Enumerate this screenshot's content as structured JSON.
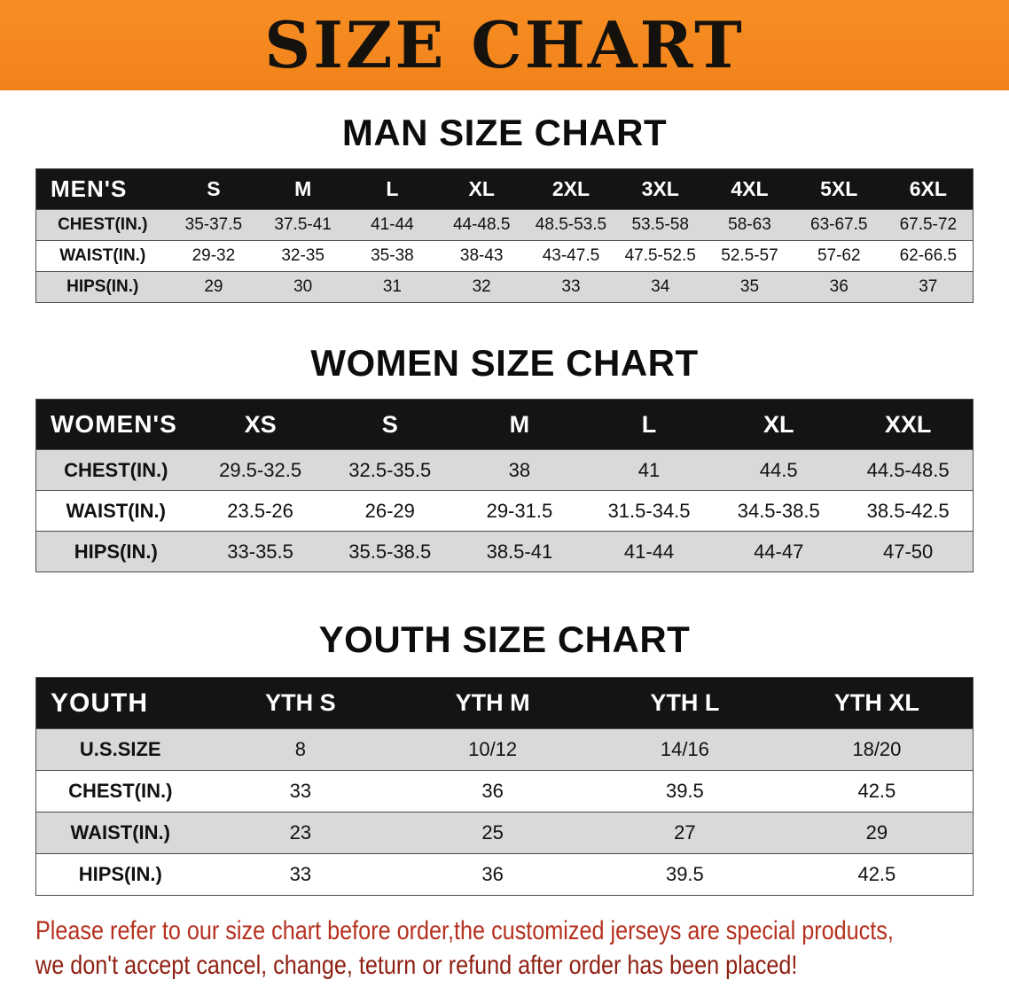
{
  "banner": {
    "title": "SIZE CHART"
  },
  "colors": {
    "banner_bg": "#F1821A",
    "table_header_bg": "#141414",
    "row_stripe": "#D9D9D9",
    "disclaimer_line1": "#B5301E",
    "disclaimer_line2": "#8F2012"
  },
  "sections": [
    {
      "id": "men",
      "title": "MAN SIZE CHART",
      "table": {
        "header": [
          "MEN'S",
          "S",
          "M",
          "L",
          "XL",
          "2XL",
          "3XL",
          "4XL",
          "5XL",
          "6XL"
        ],
        "rows": [
          [
            "CHEST(IN.)",
            "35-37.5",
            "37.5-41",
            "41-44",
            "44-48.5",
            "48.5-53.5",
            "53.5-58",
            "58-63",
            "63-67.5",
            "67.5-72"
          ],
          [
            "WAIST(IN.)",
            "29-32",
            "32-35",
            "35-38",
            "38-43",
            "43-47.5",
            "47.5-52.5",
            "52.5-57",
            "57-62",
            "62-66.5"
          ],
          [
            "HIPS(IN.)",
            "29",
            "30",
            "31",
            "32",
            "33",
            "34",
            "35",
            "36",
            "37"
          ]
        ]
      }
    },
    {
      "id": "women",
      "title": "WOMEN SIZE CHART",
      "table": {
        "header": [
          "WOMEN'S",
          "XS",
          "S",
          "M",
          "L",
          "XL",
          "XXL"
        ],
        "rows": [
          [
            "CHEST(IN.)",
            "29.5-32.5",
            "32.5-35.5",
            "38",
            "41",
            "44.5",
            "44.5-48.5"
          ],
          [
            "WAIST(IN.)",
            "23.5-26",
            "26-29",
            "29-31.5",
            "31.5-34.5",
            "34.5-38.5",
            "38.5-42.5"
          ],
          [
            "HIPS(IN.)",
            "33-35.5",
            "35.5-38.5",
            "38.5-41",
            "41-44",
            "44-47",
            "47-50"
          ]
        ]
      }
    },
    {
      "id": "youth",
      "title": "YOUTH SIZE CHART",
      "table": {
        "header": [
          "YOUTH",
          "YTH S",
          "YTH M",
          "YTH L",
          "YTH XL"
        ],
        "rows": [
          [
            "U.S.SIZE",
            "8",
            "10/12",
            "14/16",
            "18/20"
          ],
          [
            "CHEST(IN.)",
            "33",
            "36",
            "39.5",
            "42.5"
          ],
          [
            "WAIST(IN.)",
            "23",
            "25",
            "27",
            "29"
          ],
          [
            "HIPS(IN.)",
            "33",
            "36",
            "39.5",
            "42.5"
          ]
        ]
      }
    }
  ],
  "disclaimer": {
    "line1": "Please refer to our size chart before order,the customized jerseys are special products,",
    "line2": "we don't accept cancel, change, teturn or refund after order has been placed!"
  }
}
